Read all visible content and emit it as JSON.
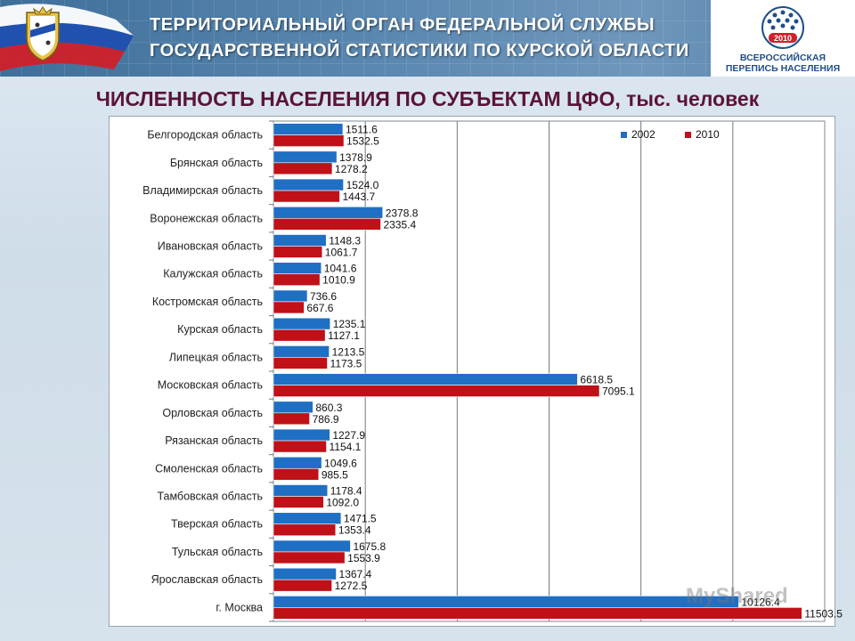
{
  "header": {
    "org_line1": "ТЕРРИТОРИАЛЬНЫЙ ОРГАН ФЕДЕРАЛЬНОЙ СЛУЖБЫ",
    "org_line2": "ГОСУДАРСТВЕННОЙ СТАТИСТИКИ ПО КУРСКОЙ ОБЛАСТИ",
    "census_year": "2010",
    "census_text1": "ВСЕРОССИЙСКАЯ",
    "census_text2": "ПЕРЕПИСЬ НАСЕЛЕНИЯ"
  },
  "page_title": "ЧИСЛЕННОСТЬ НАСЕЛЕНИЯ ПО СУБЪЕКТАМ ЦФО, тыс. человек",
  "watermark": "MyShared",
  "colors": {
    "series_2002": "#1f6fc4",
    "series_2010": "#c01018",
    "title": "#5a1436",
    "header_bg": "#4f7ea6"
  },
  "chart_data": {
    "type": "bar",
    "orientation": "horizontal",
    "title": "ЧИСЛЕННОСТЬ НАСЕЛЕНИЯ ПО СУБЪЕКТАМ ЦФО, тыс. человек",
    "xlim": [
      0,
      12000
    ],
    "grid": true,
    "legend_position": "top-right",
    "categories": [
      "Белгородская область",
      "Брянская область",
      "Владимирская область",
      "Воронежская область",
      "Ивановская область",
      "Калужская область",
      "Костромская область",
      "Курская область",
      "Липецкая область",
      "Московская область",
      "Орловская область",
      "Рязанская область",
      "Смоленская область",
      "Тамбовская область",
      "Тверская область",
      "Тульская область",
      "Ярославская область",
      "г. Москва"
    ],
    "series": [
      {
        "name": "2002",
        "color": "#1f6fc4",
        "values": [
          1511.6,
          1378.9,
          1524.0,
          2378.8,
          1148.3,
          1041.6,
          736.6,
          1235.1,
          1213.5,
          6618.5,
          860.3,
          1227.9,
          1049.6,
          1178.4,
          1471.5,
          1675.8,
          1367.4,
          10126.4
        ],
        "labels": [
          "1511.6",
          "1378.9",
          "1524.0",
          "2378.8",
          "1148.3",
          "1041.6",
          "736.6",
          "1235.1",
          "1213.5",
          "6618.5",
          "860.3",
          "1227.9",
          "1049.6",
          "1178.4",
          "1471.5",
          "1675.8",
          "1367.4",
          "10126.4"
        ]
      },
      {
        "name": "2010",
        "color": "#c01018",
        "values": [
          1532.5,
          1278.2,
          1443.7,
          2335.4,
          1061.7,
          1010.9,
          667.6,
          1127.1,
          1173.5,
          7095.1,
          786.9,
          1154.1,
          985.5,
          1092.0,
          1353.4,
          1553.9,
          1272.5,
          11503.5
        ],
        "labels": [
          "1532.5",
          "1278.2",
          "1443.7",
          "2335.4",
          "1061.7",
          "1010.9",
          "667.6",
          "1127.1",
          "1173.5",
          "7095.1",
          "786.9",
          "1154.1",
          "985.5",
          "1092.0",
          "1353.4",
          "1553.9",
          "1272.5",
          "11503.5"
        ]
      }
    ]
  }
}
